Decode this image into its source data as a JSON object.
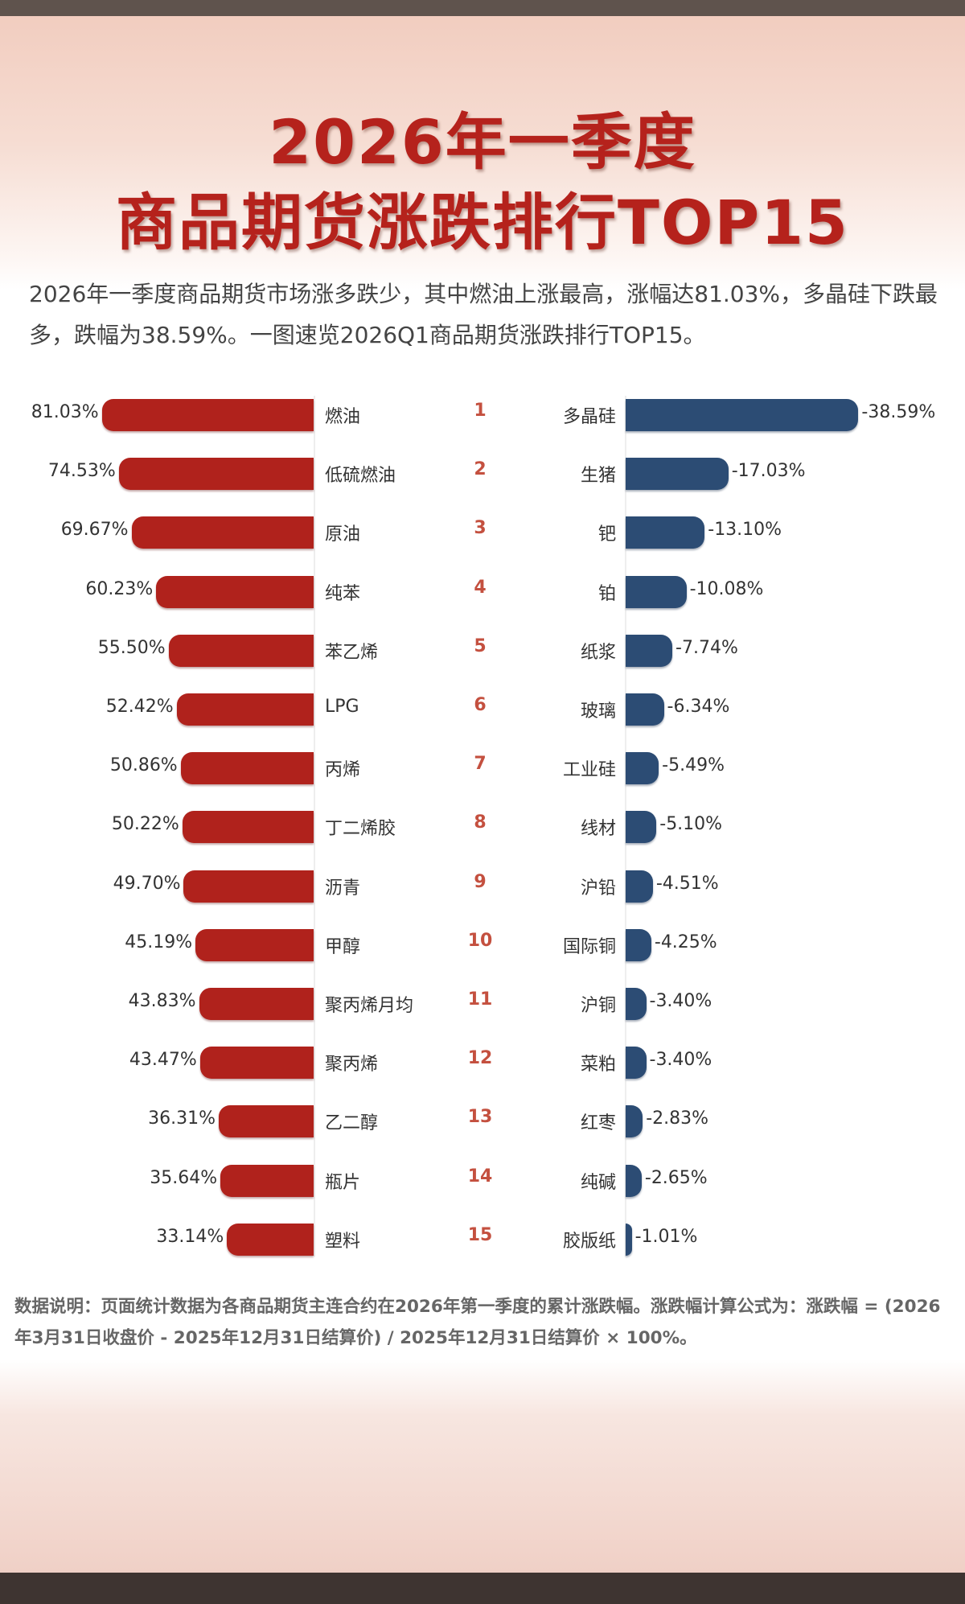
{
  "title_line1": "2026年一季度",
  "title_line2": "商品期货涨跌排行TOP15",
  "intro": "2026年一季度商品期货市场涨多跌少，其中燃油上涨最高，涨幅达81.03%，多晶硅下跌最多，跌幅为38.59%。一图速览2026Q1商品期货涨跌排行TOP15。",
  "note": "数据说明：页面统计数据为各商品期货主连合约在2026年第一季度的累计涨跌幅。涨跌幅计算公式为：涨跌幅 = (2026年3月31日收盘价 - 2025年12月31日结算价) / 2025年12月31日结算价 × 100%。",
  "colors": {
    "gain": "#b0221c",
    "loss": "#2c4c74",
    "rank": "#c4503f"
  },
  "chart_data": {
    "type": "bar",
    "ranks": [
      "1",
      "2",
      "3",
      "4",
      "5",
      "6",
      "7",
      "8",
      "9",
      "10",
      "11",
      "12",
      "13",
      "14",
      "15"
    ],
    "series": [
      {
        "categories": [
          "燃油",
          "低硫燃油",
          "原油",
          "纯苯",
          "苯乙烯",
          "LPG",
          "丙烯",
          "丁二烯胶",
          "沥青",
          "甲醇",
          "聚丙烯月均",
          "聚丙烯",
          "乙二醇",
          "瓶片",
          "塑料"
        ],
        "values": [
          81.03,
          74.53,
          69.67,
          60.23,
          55.5,
          52.42,
          50.86,
          50.22,
          49.7,
          45.19,
          43.83,
          43.47,
          36.31,
          35.64,
          33.14
        ],
        "labels": [
          "81.03%",
          "74.53%",
          "69.67%",
          "60.23%",
          "55.50%",
          "52.42%",
          "50.86%",
          "50.22%",
          "49.70%",
          "45.19%",
          "43.83%",
          "43.47%",
          "36.31%",
          "35.64%",
          "33.14%"
        ]
      },
      {
        "categories": [
          "多晶硅",
          "生猪",
          "钯",
          "铂",
          "纸浆",
          "玻璃",
          "工业硅",
          "线材",
          "沪铅",
          "国际铜",
          "沪铜",
          "菜粕",
          "红枣",
          "纯碱",
          "胶版纸"
        ],
        "values": [
          -38.59,
          -17.03,
          -13.1,
          -10.08,
          -7.74,
          -6.34,
          -5.49,
          -5.1,
          -4.51,
          -4.25,
          -3.4,
          -3.4,
          -2.83,
          -2.65,
          -1.01
        ],
        "labels": [
          "-38.59%",
          "-17.03%",
          "-13.10%",
          "-10.08%",
          "-7.74%",
          "-6.34%",
          "-5.49%",
          "-5.10%",
          "-4.51%",
          "-4.25%",
          "-3.40%",
          "-3.40%",
          "-2.83%",
          "-2.65%",
          "-1.01%"
        ]
      }
    ]
  }
}
